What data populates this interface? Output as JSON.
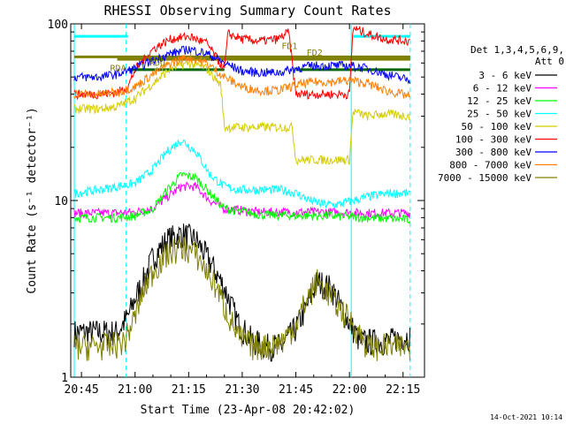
{
  "chart_data": {
    "type": "line",
    "title": "RHESSI Observing Summary Count Rates",
    "xlabel": "Start Time (23-Apr-08 20:42:02)",
    "ylabel": "Count Rate (s⁻¹ detector⁻¹)",
    "yscale": "log",
    "ylim": [
      1,
      100
    ],
    "xlim_minutes": [
      -3,
      96
    ],
    "x_ticks": [
      {
        "label": "20:45",
        "t": 0
      },
      {
        "label": "21:00",
        "t": 15
      },
      {
        "label": "21:15",
        "t": 30
      },
      {
        "label": "21:30",
        "t": 45
      },
      {
        "label": "21:45",
        "t": 60
      },
      {
        "label": "22:00",
        "t": 75
      },
      {
        "label": "22:15",
        "t": 90
      }
    ],
    "y_ticks": [
      {
        "label": "1",
        "v": 1
      },
      {
        "label": "10",
        "v": 10
      },
      {
        "label": "100",
        "v": 100
      }
    ],
    "legend": {
      "placement": "right",
      "header": [
        "Det 1,3,4,5,6,9,",
        "Att 0"
      ],
      "entries": [
        {
          "label": "3 - 6 keV",
          "color": "#000000"
        },
        {
          "label": "6 - 12 keV",
          "color": "#ff00ff"
        },
        {
          "label": "12 - 25 keV",
          "color": "#00ff00"
        },
        {
          "label": "25 - 50 keV",
          "color": "#00ffff"
        },
        {
          "label": "50 - 100 keV",
          "color": "#d4cc00"
        },
        {
          "label": "100 - 300 keV",
          "color": "#ff0000"
        },
        {
          "label": "300 - 800 keV",
          "color": "#0000ff"
        },
        {
          "label": "800 - 7000 keV",
          "color": "#ff8000"
        },
        {
          "label": "7000 - 15000 keV",
          "color": "#808000"
        }
      ]
    },
    "series": [
      {
        "name": "3 - 6 keV",
        "color": "#000000",
        "t": [
          -2,
          5,
          10,
          13,
          15,
          18,
          20,
          24,
          28,
          32,
          36,
          40,
          44,
          48,
          52,
          56,
          60,
          63,
          66,
          70,
          74,
          78,
          82,
          86,
          90,
          92
        ],
        "y": [
          1.8,
          1.8,
          1.8,
          2.2,
          2.8,
          3.8,
          4.8,
          6,
          6.5,
          6,
          4.5,
          3.2,
          2,
          1.6,
          1.5,
          1.5,
          1.9,
          2.5,
          3.5,
          3.2,
          2.2,
          1.6,
          1.6,
          1.6,
          1.7,
          1.7
        ]
      },
      {
        "name": "6 - 12 keV",
        "color": "#ff00ff",
        "t": [
          -2,
          10,
          15,
          20,
          24,
          28,
          32,
          36,
          40,
          50,
          60,
          70,
          80,
          92
        ],
        "y": [
          8.5,
          8.5,
          8.6,
          9,
          10.5,
          12,
          12,
          10,
          9,
          8.6,
          8.6,
          8.6,
          8.5,
          8.5
        ]
      },
      {
        "name": "12 - 25 keV",
        "color": "#00ff00",
        "t": [
          -2,
          10,
          15,
          20,
          24,
          28,
          32,
          36,
          40,
          50,
          60,
          70,
          80,
          92
        ],
        "y": [
          8,
          8,
          8.2,
          9,
          11.5,
          14,
          13.5,
          11,
          9,
          8.3,
          8.2,
          8.2,
          8,
          7.8
        ]
      },
      {
        "name": "25 - 50 keV",
        "color": "#00ffff",
        "t": [
          -2,
          5,
          10,
          15,
          20,
          24,
          28,
          32,
          36,
          40,
          44,
          48,
          52,
          56,
          60,
          64,
          68,
          72,
          76,
          80,
          86,
          92
        ],
        "y": [
          11,
          11.5,
          12,
          12.5,
          15,
          19,
          22,
          19,
          14,
          12,
          11.5,
          11.5,
          11.5,
          11.5,
          11,
          10,
          9.5,
          9.5,
          10,
          10.5,
          11,
          11
        ]
      },
      {
        "name": "50 - 100 keV",
        "color": "#d4cc00",
        "t": [
          -2,
          5,
          10,
          15,
          20,
          25,
          30,
          35,
          39,
          40,
          45,
          50,
          55,
          59,
          60,
          65,
          75,
          76,
          80,
          85,
          92
        ],
        "y": [
          33,
          33,
          34,
          38,
          46,
          56,
          60,
          56,
          45,
          26,
          26,
          26,
          26,
          26,
          17,
          17,
          17,
          32,
          30,
          31,
          30
        ]
      },
      {
        "name": "100 - 300 keV",
        "color": "#ff0000",
        "t": [
          -2,
          5,
          10,
          13,
          15,
          20,
          25,
          30,
          35,
          40,
          41,
          45,
          50,
          55,
          58,
          60,
          65,
          70,
          75,
          76,
          80,
          85,
          92
        ],
        "y": [
          40,
          40,
          41,
          44,
          55,
          72,
          82,
          85,
          78,
          55,
          88,
          82,
          80,
          82,
          90,
          40,
          40,
          40,
          40,
          95,
          88,
          82,
          80
        ]
      },
      {
        "name": "300 - 800 keV",
        "color": "#0000ff",
        "t": [
          -2,
          5,
          10,
          15,
          20,
          25,
          30,
          35,
          40,
          45,
          50,
          55,
          60,
          65,
          70,
          75,
          80,
          85,
          92
        ],
        "y": [
          50,
          50,
          52,
          56,
          62,
          68,
          72,
          68,
          60,
          54,
          53,
          53,
          56,
          58,
          58,
          58,
          56,
          52,
          48
        ]
      },
      {
        "name": "800 - 7000 keV",
        "color": "#ff8000",
        "t": [
          -2,
          5,
          10,
          15,
          20,
          25,
          30,
          35,
          40,
          45,
          50,
          55,
          60,
          65,
          70,
          75,
          80,
          85,
          92
        ],
        "y": [
          40,
          40,
          41,
          44,
          52,
          60,
          65,
          60,
          50,
          44,
          42,
          42,
          45,
          47,
          47,
          48,
          46,
          42,
          39
        ]
      },
      {
        "name": "7000 - 15000 keV",
        "color": "#808000",
        "t": [
          -2,
          8,
          12,
          15,
          17,
          20,
          24,
          28,
          32,
          35,
          38,
          40,
          44,
          48,
          52,
          56,
          60,
          62,
          64,
          66,
          68,
          72,
          76,
          80,
          84,
          88,
          90,
          92
        ],
        "y": [
          1.5,
          1.5,
          1.6,
          2.2,
          3,
          4,
          5,
          5.5,
          5,
          4,
          3.2,
          2.5,
          1.7,
          1.5,
          1.5,
          1.6,
          2,
          2.5,
          3,
          3.5,
          3.2,
          2.5,
          2,
          1.5,
          1.5,
          1.5,
          1.5,
          1.5
        ]
      }
    ],
    "horizontal_bars": [
      {
        "t0": -2,
        "t1": 92,
        "y": 65,
        "color": "#808000"
      },
      {
        "t0": 10,
        "t1": 92,
        "y": 63,
        "color": "#808000"
      },
      {
        "t0": 13,
        "t1": 40,
        "y": 55,
        "color": "#006600"
      },
      {
        "t0": 60,
        "t1": 92,
        "y": 55,
        "color": "#006600"
      },
      {
        "t0": -2,
        "t1": 13,
        "y": 85,
        "color": "#00ffff"
      },
      {
        "t0": 76,
        "t1": 92,
        "y": 85,
        "color": "#00ffff"
      }
    ],
    "vertical_lines": [
      {
        "t": -2,
        "color": "#00ffff",
        "style": "solid"
      },
      {
        "t": 12.5,
        "color": "#00ffff",
        "style": "dashed"
      },
      {
        "t": 75.5,
        "color": "#00ffff",
        "style": "solid"
      },
      {
        "t": 92,
        "color": "#00ffff",
        "style": "dashed"
      }
    ],
    "annotations": [
      {
        "text": "FD1",
        "t": 56,
        "y": 72,
        "color": "#808000"
      },
      {
        "text": "FD2",
        "t": 63,
        "y": 66,
        "color": "#808000"
      },
      {
        "text": "RDO",
        "t": 19,
        "y": 58,
        "color": "#808000"
      },
      {
        "text": "RDA",
        "t": 8,
        "y": 54,
        "color": "#808000"
      }
    ]
  },
  "footer": {
    "stamp": "14-Oct-2021 10:14"
  }
}
